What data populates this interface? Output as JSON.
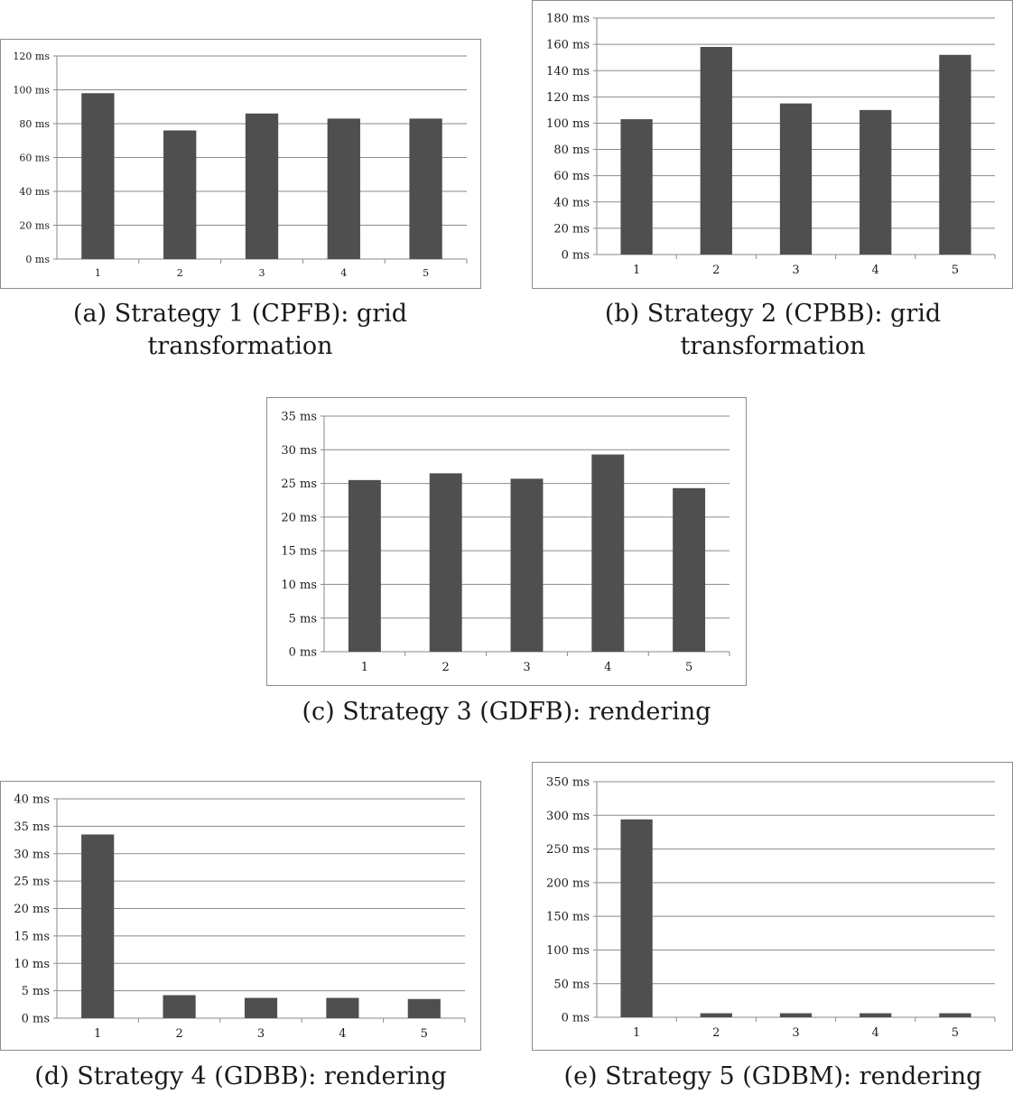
{
  "colors": {
    "bar": "#4f4f4f",
    "grid": "#8a8a8a",
    "axis": "#8a8a8a"
  },
  "captions": {
    "a": "(a) Strategy 1 (CPFB): grid transformation",
    "b": "(b) Strategy 2 (CPBB): grid transformation",
    "c": "(c) Strategy 3 (GDFB): rendering",
    "d": "(d) Strategy 4 (GDBB): rendering",
    "e": "(e) Strategy 5 (GDBM): rendering"
  },
  "chart_data": [
    {
      "id": "a",
      "type": "bar",
      "categories": [
        "1",
        "2",
        "3",
        "4",
        "5"
      ],
      "values": [
        98,
        76,
        86,
        83,
        83
      ],
      "ylim": [
        0,
        120
      ],
      "yticks": [
        "0 ms",
        "20 ms",
        "40 ms",
        "60 ms",
        "80 ms",
        "100 ms",
        "120 ms"
      ],
      "grid": true
    },
    {
      "id": "b",
      "type": "bar",
      "categories": [
        "1",
        "2",
        "3",
        "4",
        "5"
      ],
      "values": [
        103,
        158,
        115,
        110,
        152
      ],
      "ylim": [
        0,
        180
      ],
      "yticks": [
        "0 ms",
        "20 ms",
        "40 ms",
        "60 ms",
        "80 ms",
        "100 ms",
        "120 ms",
        "140 ms",
        "160 ms",
        "180 ms"
      ],
      "grid": true
    },
    {
      "id": "c",
      "type": "bar",
      "categories": [
        "1",
        "2",
        "3",
        "4",
        "5"
      ],
      "values": [
        25.5,
        26.5,
        25.7,
        29.3,
        24.3
      ],
      "ylim": [
        0,
        35
      ],
      "yticks": [
        "0 ms",
        "5 ms",
        "10 ms",
        "15 ms",
        "20 ms",
        "25 ms",
        "30 ms",
        "35 ms"
      ],
      "grid": true
    },
    {
      "id": "d",
      "type": "bar",
      "categories": [
        "1",
        "2",
        "3",
        "4",
        "5"
      ],
      "values": [
        33.5,
        4.2,
        3.7,
        3.7,
        3.5
      ],
      "ylim": [
        0,
        40
      ],
      "yticks": [
        "0 ms",
        "5 ms",
        "10 ms",
        "15 ms",
        "20 ms",
        "25 ms",
        "30 ms",
        "35 ms",
        "40 ms"
      ],
      "grid": true
    },
    {
      "id": "e",
      "type": "bar",
      "categories": [
        "1",
        "2",
        "3",
        "4",
        "5"
      ],
      "values": [
        294,
        6,
        6,
        6,
        6
      ],
      "ylim": [
        0,
        350
      ],
      "yticks": [
        "0 ms",
        "50 ms",
        "100 ms",
        "150 ms",
        "200 ms",
        "250 ms",
        "300 ms",
        "350 ms"
      ],
      "grid": true
    }
  ]
}
